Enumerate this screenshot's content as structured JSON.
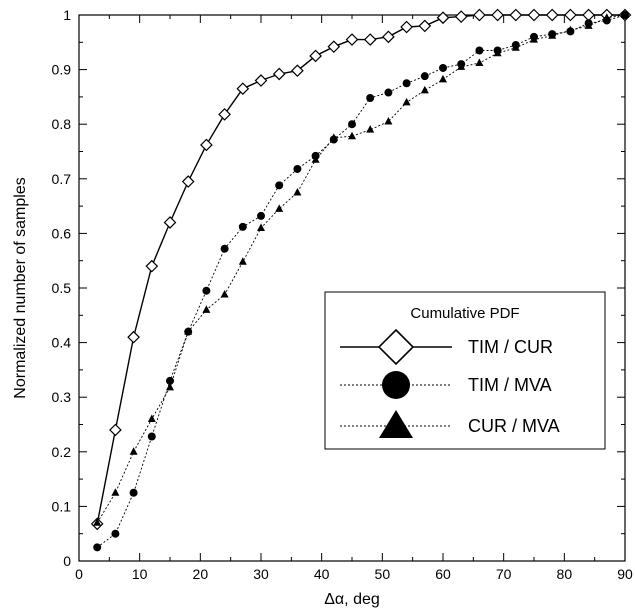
{
  "chart_data": {
    "type": "line",
    "xlabel": "Δα, deg",
    "ylabel": "Normalized number of samples",
    "xlim": [
      0,
      90
    ],
    "ylim": [
      0,
      1
    ],
    "xticks": [
      0,
      10,
      20,
      30,
      40,
      50,
      60,
      70,
      80,
      90
    ],
    "yticks": [
      0,
      0.1,
      0.2,
      0.3,
      0.4,
      0.5,
      0.6,
      0.7,
      0.8,
      0.9,
      1
    ],
    "xtick_labels": [
      "0",
      "10",
      "20",
      "30",
      "40",
      "50",
      "60",
      "70",
      "80",
      "90"
    ],
    "ytick_labels": [
      "0",
      "0.1",
      "0.2",
      "0.3",
      "0.4",
      "0.5",
      "0.6",
      "0.7",
      "0.8",
      "0.9",
      "1"
    ],
    "grid": false,
    "legend": {
      "title": "Cumulative PDF",
      "placement": "lower-right"
    },
    "series": [
      {
        "name": "TIM / CUR",
        "marker": "diamond-open",
        "line": "solid",
        "x": [
          3,
          6,
          9,
          12,
          15,
          18,
          21,
          24,
          27,
          30,
          33,
          36,
          39,
          42,
          45,
          48,
          51,
          54,
          57,
          60,
          63,
          66,
          69,
          72,
          75,
          78,
          81,
          84,
          87,
          90
        ],
        "y": [
          0.068,
          0.24,
          0.41,
          0.54,
          0.62,
          0.695,
          0.762,
          0.818,
          0.865,
          0.88,
          0.892,
          0.898,
          0.925,
          0.942,
          0.955,
          0.955,
          0.96,
          0.978,
          0.98,
          0.995,
          0.997,
          1.0,
          1.0,
          1.0,
          1.0,
          1.0,
          1.0,
          1.0,
          1.0,
          1.0
        ]
      },
      {
        "name": "TIM / MVA",
        "marker": "circle-filled",
        "line": "dotted",
        "x": [
          3,
          6,
          9,
          12,
          15,
          18,
          21,
          24,
          27,
          30,
          33,
          36,
          39,
          42,
          45,
          48,
          51,
          54,
          57,
          60,
          63,
          66,
          69,
          72,
          75,
          78,
          81,
          84,
          87,
          90
        ],
        "y": [
          0.025,
          0.05,
          0.125,
          0.228,
          0.33,
          0.42,
          0.495,
          0.572,
          0.612,
          0.632,
          0.688,
          0.718,
          0.742,
          0.772,
          0.8,
          0.848,
          0.858,
          0.875,
          0.888,
          0.903,
          0.91,
          0.935,
          0.935,
          0.945,
          0.96,
          0.965,
          0.97,
          0.985,
          0.99,
          1.0
        ]
      },
      {
        "name": "CUR / MVA",
        "marker": "triangle-filled",
        "line": "dotted",
        "x": [
          3,
          6,
          9,
          12,
          15,
          18,
          21,
          24,
          27,
          30,
          33,
          36,
          39,
          42,
          45,
          48,
          51,
          54,
          57,
          60,
          63,
          66,
          69,
          72,
          75,
          78,
          81,
          84,
          87,
          90
        ],
        "y": [
          0.07,
          0.125,
          0.2,
          0.26,
          0.318,
          0.42,
          0.46,
          0.488,
          0.548,
          0.61,
          0.645,
          0.675,
          0.735,
          0.775,
          0.778,
          0.79,
          0.805,
          0.84,
          0.862,
          0.882,
          0.905,
          0.912,
          0.93,
          0.94,
          0.955,
          0.962,
          0.972,
          0.98,
          0.995,
          1.0
        ]
      }
    ]
  }
}
